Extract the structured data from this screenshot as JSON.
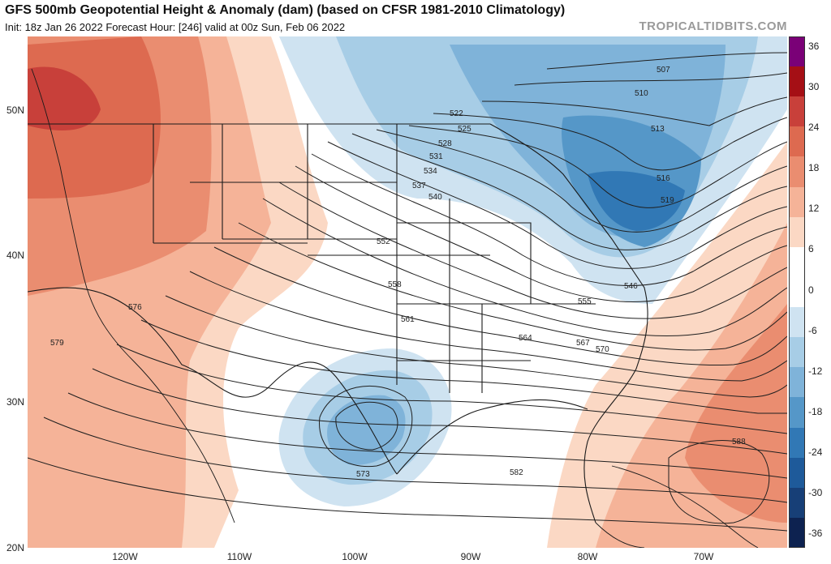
{
  "header": {
    "title": "GFS 500mb Geopotential Height & Anomaly (dam) (based on CFSR 1981-2010 Climatology)",
    "subtitle": "Init: 18z Jan 26 2022   Forecast Hour: [246]   valid at 00z Sun, Feb 06 2022",
    "brand": "TROPICALTIDBITS.COM"
  },
  "map": {
    "lat_labels": [
      "50N",
      "40N",
      "30N",
      "20N"
    ],
    "lon_labels": [
      "120W",
      "110W",
      "100W",
      "90W",
      "80W",
      "70W"
    ],
    "contour_labels": [
      "507",
      "510",
      "513",
      "516",
      "519",
      "522",
      "525",
      "528",
      "531",
      "534",
      "537",
      "540",
      "546",
      "552",
      "555",
      "558",
      "561",
      "564",
      "567",
      "570",
      "573",
      "576",
      "579",
      "582",
      "588"
    ]
  },
  "colorbar": {
    "labels": [
      "36",
      "30",
      "24",
      "18",
      "12",
      "6",
      "0",
      "-6",
      "-12",
      "-18",
      "-24",
      "-30",
      "-36"
    ],
    "colors": [
      "#7a0177",
      "#a50f15",
      "#c8403a",
      "#dd6a50",
      "#ea8d70",
      "#f5b398",
      "#fbd8c4",
      "#ffffff",
      "#ffffff",
      "#cfe3f1",
      "#a7cde6",
      "#7fb3d9",
      "#5597c8",
      "#3178b5",
      "#1e5a9a",
      "#173f77",
      "#0d2250"
    ]
  }
}
